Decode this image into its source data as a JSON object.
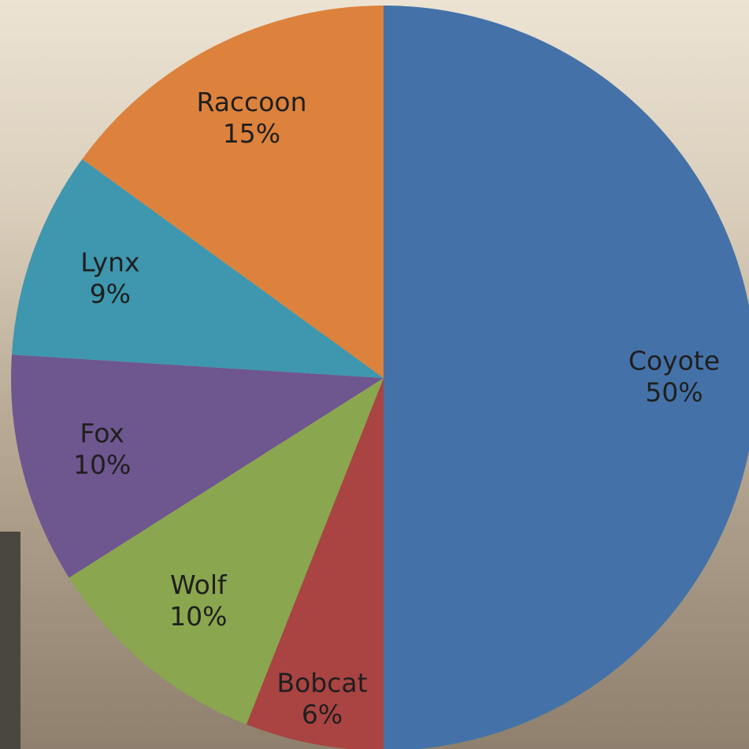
{
  "chart_data": {
    "type": "pie",
    "categories": [
      "Coyote",
      "Bobcat",
      "Wolf",
      "Fox",
      "Lynx",
      "Raccoon"
    ],
    "values": [
      50,
      6,
      10,
      10,
      9,
      15
    ],
    "value_labels": [
      "50%",
      "6%",
      "10%",
      "10%",
      "9%",
      "15%"
    ],
    "colors": [
      "#4472a8",
      "#a94442",
      "#8aa64e",
      "#6e568f",
      "#3e97ae",
      "#dc823c"
    ]
  }
}
